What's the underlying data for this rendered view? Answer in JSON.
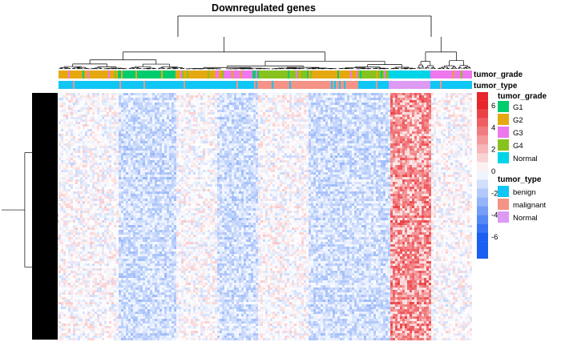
{
  "chart_data": {
    "type": "heatmap",
    "title": "Downregulated genes",
    "color_scale": {
      "ticks": [
        6,
        4,
        2,
        0,
        -2,
        -4,
        -6
      ],
      "positive_color": "#e8252a",
      "zero_color": "#ffffff",
      "negative_color": "#1a5ef2"
    },
    "annotation_tracks": [
      {
        "name": "tumor_grade",
        "legend": [
          {
            "label": "G1",
            "color": "#00cc6e"
          },
          {
            "label": "G2",
            "color": "#e6a811"
          },
          {
            "label": "G3",
            "color": "#ee77ee"
          },
          {
            "label": "G4",
            "color": "#88c21e"
          },
          {
            "label": "Normal",
            "color": "#00d4e6"
          }
        ]
      },
      {
        "name": "tumor_type",
        "legend": [
          {
            "label": "benign",
            "color": "#10c6f5"
          },
          {
            "label": "malignant",
            "color": "#f59386"
          },
          {
            "label": "Normal",
            "color": "#dd9af2"
          }
        ]
      }
    ],
    "column_blocks": [
      {
        "grade": "G2",
        "type": "benign",
        "pattern": "mixed",
        "width": 0.14
      },
      {
        "grade": "G1",
        "type": "benign",
        "pattern": "down",
        "width": 0.14
      },
      {
        "grade": "G2",
        "type": "benign",
        "pattern": "mixed",
        "width": 0.1
      },
      {
        "grade": "G3",
        "type": "benign",
        "pattern": "down",
        "width": 0.1
      },
      {
        "grade": "G4",
        "type": "malignant",
        "pattern": "mixed",
        "width": 0.12
      },
      {
        "grade": "G2",
        "type": "malignant",
        "pattern": "down",
        "width": 0.12
      },
      {
        "grade": "G4",
        "type": "benign",
        "pattern": "down",
        "width": 0.08
      },
      {
        "grade": "Normal",
        "type": "Normal",
        "pattern": "up",
        "width": 0.1
      },
      {
        "grade": "G3",
        "type": "benign",
        "pattern": "mixed",
        "width": 0.1
      }
    ]
  },
  "colors": {
    "title": "#000000",
    "dendrogram": "#000000"
  }
}
